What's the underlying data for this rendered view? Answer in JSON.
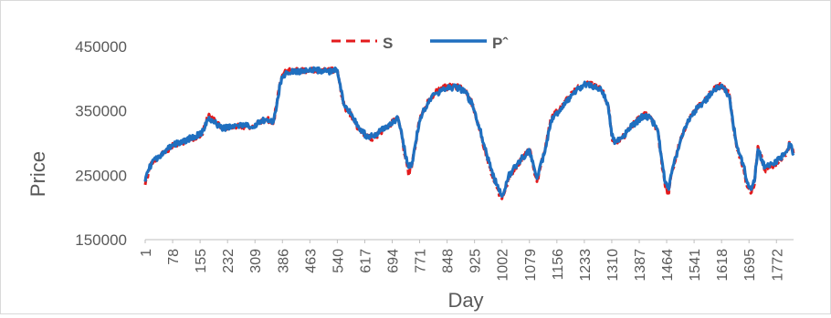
{
  "chart_data": {
    "type": "line",
    "title": "",
    "xlabel": "Day",
    "ylabel": "Price",
    "ylim": [
      150000,
      450000
    ],
    "y_ticks": [
      150000,
      250000,
      350000,
      450000
    ],
    "xlim": [
      1,
      1820
    ],
    "x_ticks": [
      1,
      78,
      155,
      232,
      309,
      386,
      463,
      540,
      617,
      694,
      771,
      848,
      925,
      1002,
      1079,
      1156,
      1233,
      1310,
      1387,
      1464,
      1541,
      1618,
      1695,
      1772
    ],
    "grid": false,
    "legend_position": "top",
    "series": [
      {
        "name": "S",
        "color": "#e31a1c",
        "line_style": "dashed",
        "x": [
          1,
          10,
          20,
          40,
          60,
          80,
          100,
          130,
          160,
          180,
          200,
          210,
          220,
          240,
          260,
          280,
          300,
          320,
          340,
          360,
          370,
          380,
          390,
          400,
          420,
          450,
          480,
          510,
          540,
          550,
          560,
          580,
          600,
          620,
          640,
          660,
          680,
          700,
          710,
          720,
          730,
          740,
          750,
          760,
          770,
          780,
          800,
          820,
          840,
          860,
          880,
          900,
          920,
          940,
          960,
          980,
          1000,
          1010,
          1020,
          1040,
          1060,
          1080,
          1090,
          1100,
          1120,
          1140,
          1160,
          1180,
          1200,
          1220,
          1240,
          1260,
          1280,
          1300,
          1310,
          1320,
          1340,
          1360,
          1380,
          1400,
          1420,
          1440,
          1450,
          1460,
          1470,
          1480,
          1500,
          1520,
          1540,
          1560,
          1580,
          1600,
          1620,
          1640,
          1650,
          1660,
          1680,
          1690,
          1700,
          1710,
          1720,
          1740,
          1760,
          1780,
          1800,
          1810,
          1820
        ],
        "y": [
          235000,
          255000,
          268000,
          278000,
          288000,
          296000,
          300000,
          307000,
          313000,
          345000,
          332000,
          326000,
          322000,
          325000,
          328000,
          326000,
          324000,
          331000,
          338000,
          330000,
          360000,
          395000,
          408000,
          411000,
          413000,
          412000,
          413000,
          412000,
          415000,
          380000,
          355000,
          343000,
          322000,
          310000,
          308000,
          316000,
          325000,
          335000,
          340000,
          315000,
          280000,
          250000,
          268000,
          300000,
          335000,
          350000,
          370000,
          380000,
          386000,
          388000,
          387000,
          380000,
          360000,
          320000,
          275000,
          240000,
          215000,
          225000,
          245000,
          262000,
          276000,
          290000,
          262000,
          240000,
          285000,
          340000,
          350000,
          365000,
          378000,
          388000,
          393000,
          390000,
          385000,
          360000,
          310000,
          298000,
          308000,
          322000,
          335000,
          345000,
          340000,
          315000,
          270000,
          232000,
          222000,
          258000,
          300000,
          330000,
          350000,
          362000,
          372000,
          385000,
          390000,
          375000,
          330000,
          295000,
          262000,
          232000,
          222000,
          235000,
          295000,
          258000,
          265000,
          272000,
          285000,
          300000,
          283000
        ]
      },
      {
        "name": "Pˆ",
        "color": "#1f6fbf",
        "line_style": "solid",
        "x": [
          1,
          10,
          20,
          40,
          60,
          80,
          100,
          130,
          160,
          180,
          200,
          210,
          220,
          240,
          260,
          280,
          300,
          320,
          340,
          360,
          370,
          380,
          390,
          400,
          420,
          450,
          480,
          510,
          540,
          550,
          560,
          580,
          600,
          620,
          640,
          660,
          680,
          700,
          710,
          720,
          730,
          740,
          750,
          760,
          770,
          780,
          800,
          820,
          840,
          860,
          880,
          900,
          920,
          940,
          960,
          980,
          1000,
          1010,
          1020,
          1040,
          1060,
          1080,
          1090,
          1100,
          1120,
          1140,
          1160,
          1180,
          1200,
          1220,
          1240,
          1260,
          1280,
          1300,
          1310,
          1320,
          1340,
          1360,
          1380,
          1400,
          1420,
          1440,
          1450,
          1460,
          1470,
          1480,
          1500,
          1520,
          1540,
          1560,
          1580,
          1600,
          1620,
          1640,
          1650,
          1660,
          1680,
          1690,
          1700,
          1710,
          1720,
          1740,
          1760,
          1780,
          1800,
          1810,
          1820
        ],
        "y": [
          240000,
          258000,
          270000,
          280000,
          290000,
          297000,
          301000,
          308000,
          315000,
          340000,
          330000,
          325000,
          323000,
          326000,
          327000,
          327000,
          325000,
          332000,
          337000,
          332000,
          358000,
          393000,
          406000,
          410000,
          412000,
          411000,
          413000,
          411000,
          413000,
          382000,
          358000,
          345000,
          325000,
          312000,
          310000,
          318000,
          326000,
          333000,
          338000,
          318000,
          285000,
          262000,
          270000,
          302000,
          333000,
          348000,
          368000,
          378000,
          384000,
          386000,
          386000,
          378000,
          358000,
          322000,
          280000,
          245000,
          220000,
          228000,
          248000,
          264000,
          278000,
          288000,
          266000,
          245000,
          282000,
          335000,
          348000,
          362000,
          376000,
          386000,
          392000,
          388000,
          383000,
          358000,
          312000,
          300000,
          310000,
          323000,
          333000,
          343000,
          338000,
          317000,
          275000,
          238000,
          228000,
          260000,
          298000,
          328000,
          348000,
          360000,
          371000,
          383000,
          389000,
          373000,
          332000,
          298000,
          265000,
          238000,
          228000,
          240000,
          290000,
          262000,
          268000,
          275000,
          286000,
          298000,
          284000
        ]
      }
    ]
  }
}
